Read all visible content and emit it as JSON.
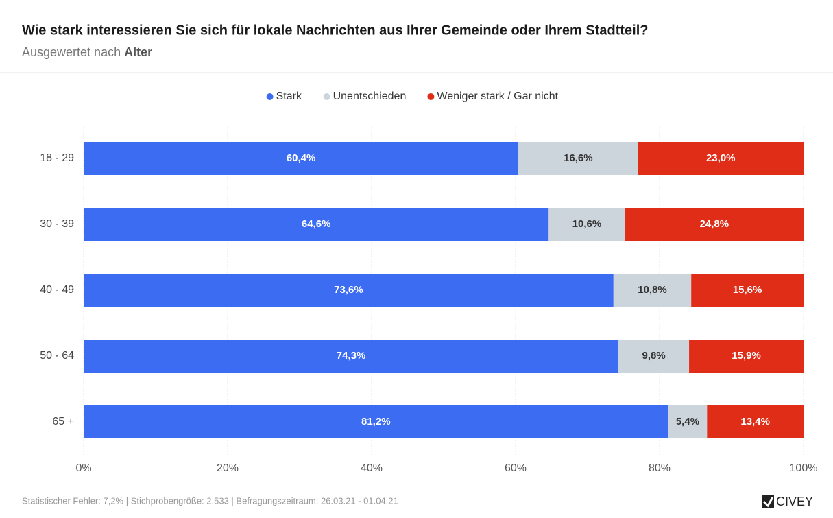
{
  "chart_data": {
    "type": "stacked_bar_horizontal",
    "title": "Wie stark interessieren Sie sich für lokale Nachrichten aus Ihrer Gemeinde oder Ihrem Stadtteil?",
    "subtitle": "Ausgewertet nach",
    "subtitle_emphasis": "Alter",
    "categories": [
      "18 - 29",
      "30 - 39",
      "40 - 49",
      "50 - 64",
      "65 +"
    ],
    "series": [
      {
        "name": "Stark",
        "color": "#3b6cf2",
        "label_color": "#ffffff",
        "values": [
          60.4,
          64.6,
          73.6,
          74.3,
          81.2
        ],
        "value_labels": [
          "60,4%",
          "64,6%",
          "73,6%",
          "74,3%",
          "81,2%"
        ]
      },
      {
        "name": "Unentschieden",
        "color": "#cdd5dc",
        "label_color": "#333333",
        "values": [
          16.6,
          10.6,
          10.8,
          9.8,
          5.4
        ],
        "value_labels": [
          "16,6%",
          "10,6%",
          "10,8%",
          "9,8%",
          "5,4%"
        ]
      },
      {
        "name": "Weniger stark / Gar nicht",
        "color": "#e02d18",
        "label_color": "#ffffff",
        "values": [
          23.0,
          24.8,
          15.6,
          15.9,
          13.4
        ],
        "value_labels": [
          "23,0%",
          "24,8%",
          "15,6%",
          "15,9%",
          "13,4%"
        ]
      }
    ],
    "xlim": [
      0,
      100
    ],
    "xticks": [
      {
        "value": 0,
        "label": "0%"
      },
      {
        "value": 20,
        "label": "20%"
      },
      {
        "value": 40,
        "label": "40%"
      },
      {
        "value": 60,
        "label": "60%"
      },
      {
        "value": 80,
        "label": "80%"
      },
      {
        "value": 100,
        "label": "100%"
      }
    ],
    "grid": true,
    "legend": "top",
    "note": "Statistischer Fehler: 7,2% | Stichprobengröße: 2.533 | Befragungszeitraum: 26.03.21 - 01.04.21",
    "logo": "CIVEY"
  }
}
